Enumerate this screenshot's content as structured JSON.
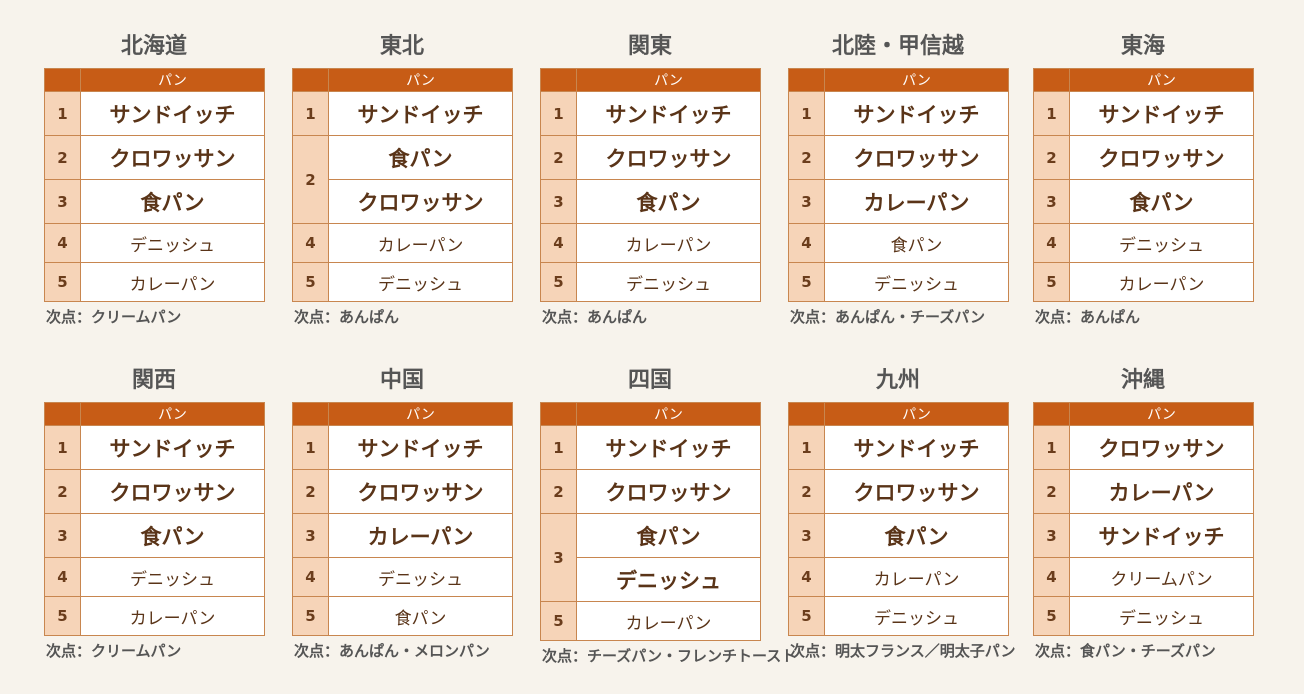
{
  "header_label": "パン",
  "regions": [
    {
      "name": "北海道",
      "rows": [
        {
          "rank": "1",
          "items": [
            "サンドイッチ"
          ]
        },
        {
          "rank": "2",
          "items": [
            "クロワッサン"
          ]
        },
        {
          "rank": "3",
          "items": [
            "食パン"
          ]
        },
        {
          "rank": "4",
          "items": [
            "デニッシュ"
          ]
        },
        {
          "rank": "5",
          "items": [
            "カレーパン"
          ]
        }
      ],
      "note": "次点：クリームパン"
    },
    {
      "name": "東北",
      "rows": [
        {
          "rank": "1",
          "items": [
            "サンドイッチ"
          ]
        },
        {
          "rank": "2",
          "items": [
            "食パン",
            "クロワッサン"
          ]
        },
        {
          "rank": "4",
          "items": [
            "カレーパン"
          ]
        },
        {
          "rank": "5",
          "items": [
            "デニッシュ"
          ]
        }
      ],
      "note": "次点：あんぱん"
    },
    {
      "name": "関東",
      "rows": [
        {
          "rank": "1",
          "items": [
            "サンドイッチ"
          ]
        },
        {
          "rank": "2",
          "items": [
            "クロワッサン"
          ]
        },
        {
          "rank": "3",
          "items": [
            "食パン"
          ]
        },
        {
          "rank": "4",
          "items": [
            "カレーパン"
          ]
        },
        {
          "rank": "5",
          "items": [
            "デニッシュ"
          ]
        }
      ],
      "note": "次点：あんぱん"
    },
    {
      "name": "北陸・甲信越",
      "rows": [
        {
          "rank": "1",
          "items": [
            "サンドイッチ"
          ]
        },
        {
          "rank": "2",
          "items": [
            "クロワッサン"
          ]
        },
        {
          "rank": "3",
          "items": [
            "カレーパン"
          ]
        },
        {
          "rank": "4",
          "items": [
            "食パン"
          ]
        },
        {
          "rank": "5",
          "items": [
            "デニッシュ"
          ]
        }
      ],
      "note": "次点：あんぱん・チーズパン"
    },
    {
      "name": "東海",
      "rows": [
        {
          "rank": "1",
          "items": [
            "サンドイッチ"
          ]
        },
        {
          "rank": "2",
          "items": [
            "クロワッサン"
          ]
        },
        {
          "rank": "3",
          "items": [
            "食パン"
          ]
        },
        {
          "rank": "4",
          "items": [
            "デニッシュ"
          ]
        },
        {
          "rank": "5",
          "items": [
            "カレーパン"
          ]
        }
      ],
      "note": "次点：あんぱん"
    },
    {
      "name": "関西",
      "rows": [
        {
          "rank": "1",
          "items": [
            "サンドイッチ"
          ]
        },
        {
          "rank": "2",
          "items": [
            "クロワッサン"
          ]
        },
        {
          "rank": "3",
          "items": [
            "食パン"
          ]
        },
        {
          "rank": "4",
          "items": [
            "デニッシュ"
          ]
        },
        {
          "rank": "5",
          "items": [
            "カレーパン"
          ]
        }
      ],
      "note": "次点：クリームパン"
    },
    {
      "name": "中国",
      "rows": [
        {
          "rank": "1",
          "items": [
            "サンドイッチ"
          ]
        },
        {
          "rank": "2",
          "items": [
            "クロワッサン"
          ]
        },
        {
          "rank": "3",
          "items": [
            "カレーパン"
          ]
        },
        {
          "rank": "4",
          "items": [
            "デニッシュ"
          ]
        },
        {
          "rank": "5",
          "items": [
            "食パン"
          ]
        }
      ],
      "note": "次点：あんぱん・メロンパン"
    },
    {
      "name": "四国",
      "rows": [
        {
          "rank": "1",
          "items": [
            "サンドイッチ"
          ]
        },
        {
          "rank": "2",
          "items": [
            "クロワッサン"
          ]
        },
        {
          "rank": "3",
          "items": [
            "食パン",
            "デニッシュ"
          ]
        },
        {
          "rank": "5",
          "items": [
            "カレーパン"
          ]
        }
      ],
      "note": "次点：チーズパン・フレンチトースト"
    },
    {
      "name": "九州",
      "rows": [
        {
          "rank": "1",
          "items": [
            "サンドイッチ"
          ]
        },
        {
          "rank": "2",
          "items": [
            "クロワッサン"
          ]
        },
        {
          "rank": "3",
          "items": [
            "食パン"
          ]
        },
        {
          "rank": "4",
          "items": [
            "カレーパン"
          ]
        },
        {
          "rank": "5",
          "items": [
            "デニッシュ"
          ]
        }
      ],
      "note": "次点：明太フランス／明太子パン"
    },
    {
      "name": "沖縄",
      "rows": [
        {
          "rank": "1",
          "items": [
            "クロワッサン"
          ]
        },
        {
          "rank": "2",
          "items": [
            "カレーパン"
          ]
        },
        {
          "rank": "3",
          "items": [
            "サンドイッチ"
          ]
        },
        {
          "rank": "4",
          "items": [
            "クリームパン"
          ]
        },
        {
          "rank": "5",
          "items": [
            "デニッシュ"
          ]
        }
      ],
      "note": "次点：食パン・チーズパン"
    }
  ]
}
